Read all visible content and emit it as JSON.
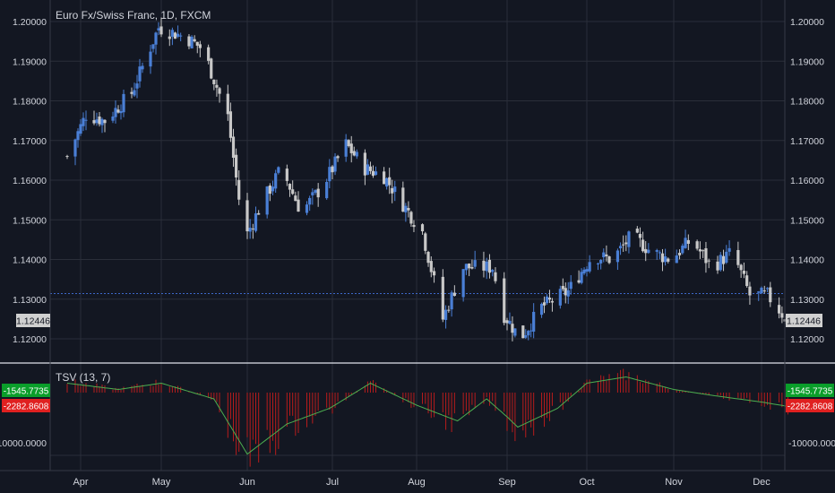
{
  "header": {
    "symbol_title": "Euro Fx/Swiss Franc, 1D, FXCM",
    "indicator_title": "TSV (13, 7)"
  },
  "colors": {
    "background": "#131722",
    "grid": "#2a2e39",
    "up_candle": "#4a7fd6",
    "down_candle": "#c8c8c8",
    "hline": "#3c66c8",
    "tsv_hist": "#b71c1c",
    "tsv_line": "#4caf50",
    "badge_green": "#0a9e2a",
    "badge_red": "#e02020",
    "badge_price": "#d0d0d0"
  },
  "price_axis": {
    "ticks": [
      "1.20000",
      "1.19000",
      "1.18000",
      "1.17000",
      "1.16000",
      "1.15000",
      "1.14000",
      "1.13000",
      "1.12000"
    ],
    "last_price": "1.12446",
    "reference_line": 1.1314
  },
  "tsv_axis": {
    "tick": "-10000.0000",
    "value_green": "-1545.7735",
    "value_red": "-2282.8608"
  },
  "time_axis": {
    "labels": [
      "Apr",
      "May",
      "Jun",
      "Jul",
      "Aug",
      "Sep",
      "Oct",
      "Nov",
      "Dec"
    ]
  },
  "chart_data": {
    "type": "candlestick",
    "title": "Euro Fx/Swiss Franc, 1D, FXCM",
    "ylim": [
      1.117,
      1.2035
    ],
    "series": [
      {
        "name": "TSV (13, 7)",
        "type": "histogram+line"
      }
    ],
    "trend_path": [
      [
        "Mar 27",
        1.166
      ],
      [
        "Apr 3",
        1.1765
      ],
      [
        "Apr 10",
        1.175
      ],
      [
        "Apr 20",
        1.182
      ],
      [
        "Apr 30",
        1.1985
      ],
      [
        "May 10",
        1.196
      ],
      [
        "May 16",
        1.193
      ],
      [
        "May 25",
        1.176
      ],
      [
        "May 31",
        1.145
      ],
      [
        "Jun 6",
        1.154
      ],
      [
        "Jun 13",
        1.163
      ],
      [
        "Jun 20",
        1.152
      ],
      [
        "Jun 27",
        1.158
      ],
      [
        "Jul 6",
        1.169
      ],
      [
        "Jul 13",
        1.163
      ],
      [
        "Jul 20",
        1.161
      ],
      [
        "Jul 27",
        1.154
      ],
      [
        "Aug 3",
        1.147
      ],
      [
        "Aug 10",
        1.125
      ],
      [
        "Aug 17",
        1.138
      ],
      [
        "Aug 27",
        1.138
      ],
      [
        "Aug 31",
        1.126
      ],
      [
        "Sep 6",
        1.12
      ],
      [
        "Sep 14",
        1.128
      ],
      [
        "Sep 24",
        1.132
      ],
      [
        "Oct 3",
        1.141
      ],
      [
        "Oct 10",
        1.14
      ],
      [
        "Oct 17",
        1.146
      ],
      [
        "Oct 24",
        1.142
      ],
      [
        "Oct 31",
        1.14
      ],
      [
        "Nov 7",
        1.145
      ],
      [
        "Nov 14",
        1.138
      ],
      [
        "Nov 21",
        1.142
      ],
      [
        "Nov 27",
        1.131
      ],
      [
        "Dec 3",
        1.131
      ],
      [
        "Dec 10",
        1.1245
      ]
    ],
    "tsv_line_path": [
      [
        "Mar 27",
        1500
      ],
      [
        "Apr 15",
        500
      ],
      [
        "May 1",
        1500
      ],
      [
        "May 20",
        -1000
      ],
      [
        "Jun 1",
        -9800
      ],
      [
        "Jun 15",
        -5000
      ],
      [
        "Jun 30",
        -2500
      ],
      [
        "Jul 15",
        1500
      ],
      [
        "Aug 1",
        -2000
      ],
      [
        "Aug 15",
        -4500
      ],
      [
        "Aug 25",
        -1000
      ],
      [
        "Sep 5",
        -5500
      ],
      [
        "Sep 20",
        -2500
      ],
      [
        "Oct 1",
        1500
      ],
      [
        "Oct 15",
        2500
      ],
      [
        "Nov 1",
        500
      ],
      [
        "Nov 15",
        -500
      ],
      [
        "Dec 1",
        -1500
      ],
      [
        "Dec 10",
        -2200
      ]
    ],
    "tsv_range": [
      -12000,
      4000
    ]
  }
}
